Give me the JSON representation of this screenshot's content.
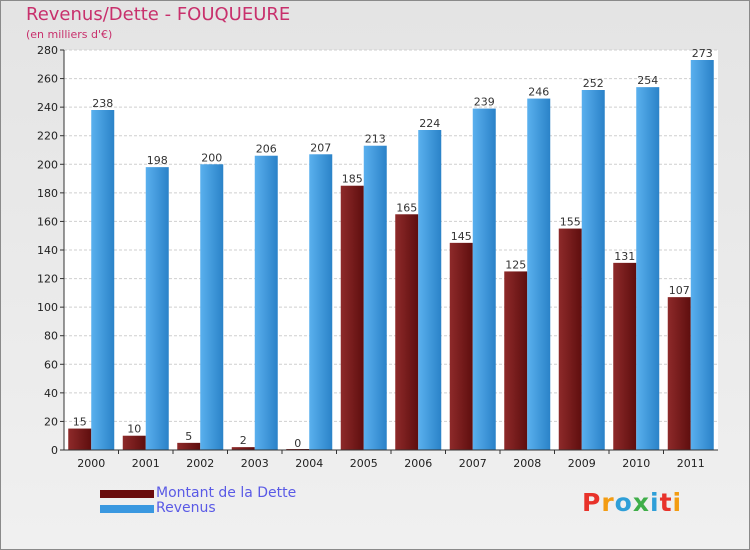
{
  "header": {
    "title": "Revenus/Dette - FOUQUEURE",
    "subtitle": "(en milliers d'€)"
  },
  "logo": {
    "letters": [
      "P",
      "r",
      "o",
      "x",
      "i",
      "t",
      "i"
    ],
    "colors": [
      "#e8322a",
      "#f39c12",
      "#2f9fd8",
      "#3fae49",
      "#2f9fd8",
      "#e8322a",
      "#f39c12"
    ]
  },
  "colors": {
    "dette": "#7a1a1a",
    "revenus": "#3a98e0",
    "title": "#c8306c"
  },
  "chart_data": {
    "type": "bar",
    "title": "Revenus/Dette - FOUQUEURE",
    "ylabel": "(en milliers d'€)",
    "xlabel": "",
    "ylim": [
      0,
      280
    ],
    "yticks": [
      0,
      20,
      40,
      60,
      80,
      100,
      120,
      140,
      160,
      180,
      200,
      220,
      240,
      260,
      280
    ],
    "grid": true,
    "legend_position": "bottom-left",
    "categories": [
      "2000",
      "2001",
      "2002",
      "2003",
      "2004",
      "2005",
      "2006",
      "2007",
      "2008",
      "2009",
      "2010",
      "2011"
    ],
    "series": [
      {
        "name": "Montant de la Dette",
        "values": [
          15,
          10,
          5,
          2,
          0,
          185,
          165,
          145,
          125,
          155,
          131,
          107
        ]
      },
      {
        "name": "Revenus",
        "values": [
          238,
          198,
          200,
          206,
          207,
          213,
          224,
          239,
          246,
          252,
          254,
          273
        ]
      }
    ]
  }
}
